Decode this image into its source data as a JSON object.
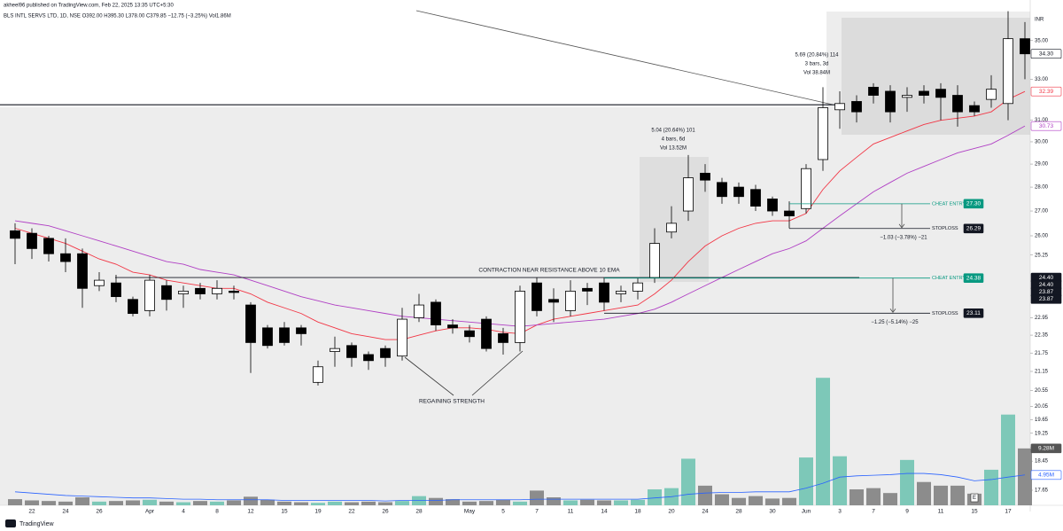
{
  "header": {
    "attribution": "akheel96 published on TradingView.com, Feb 22, 2025 13:35 UTC+5:30",
    "symbol_line": "BLS INTL SERVS LTD, 1D, NSE  O392.00 H395.30 L378.00 C379.85 −12.75 (−3.25%) Vol1.86M"
  },
  "footer": {
    "logo": "TradingView"
  },
  "chart_data": {
    "type": "candlestick",
    "currency": "INR",
    "log_scale": true,
    "grid": false,
    "up_color": "#ffffff",
    "down_color": "#000000",
    "volume_up_color": "#7dc8b8",
    "volume_down_color": "#8c8c8c",
    "ylim": [
      17.25,
      36.73
    ],
    "yticks": [
      {
        "value": 35,
        "label": "35.00"
      },
      {
        "value": 33,
        "label": "33.00"
      },
      {
        "value": 31,
        "label": "31.00"
      },
      {
        "value": 30,
        "label": "30.00"
      },
      {
        "value": 29,
        "label": "29.00"
      },
      {
        "value": 28,
        "label": "28.00"
      },
      {
        "value": 27,
        "label": "27.00"
      },
      {
        "value": 26,
        "label": "26.00"
      },
      {
        "value": 25.25,
        "label": "25.25"
      },
      {
        "value": 22.95,
        "label": "22.95"
      },
      {
        "value": 22.35,
        "label": "22.35"
      },
      {
        "value": 21.75,
        "label": "21.75"
      },
      {
        "value": 21.15,
        "label": "21.15"
      },
      {
        "value": 20.55,
        "label": "20.55"
      },
      {
        "value": 20.05,
        "label": "20.05"
      },
      {
        "value": 19.65,
        "label": "19.65"
      },
      {
        "value": 19.25,
        "label": "19.25"
      },
      {
        "value": 18.85,
        "label": "18.85"
      },
      {
        "value": 18.45,
        "label": "18.45"
      },
      {
        "value": 17.65,
        "label": "17.65"
      }
    ],
    "volume_ylim": [
      0,
      81
    ],
    "categories": [
      null,
      "22",
      null,
      "24",
      null,
      "26",
      null,
      null,
      "Apr",
      null,
      "4",
      null,
      "8",
      null,
      "12",
      null,
      "15",
      null,
      "19",
      null,
      "22",
      null,
      "26",
      null,
      "28",
      null,
      null,
      "May",
      null,
      "5",
      null,
      "7",
      null,
      "11",
      null,
      "14",
      null,
      "18",
      null,
      "20",
      null,
      "24",
      null,
      "28",
      null,
      "30",
      null,
      "Jun",
      null,
      "3",
      null,
      "7",
      null,
      "9",
      null,
      "11",
      null,
      "15",
      null,
      "17",
      null
    ],
    "open": [
      26.2,
      26.1,
      25.9,
      25.3,
      25.3,
      24.1,
      24.2,
      23.6,
      23.2,
      24.1,
      23.8,
      24.0,
      23.8,
      23.9,
      23.4,
      22.6,
      22.6,
      22.6,
      20.8,
      21.8,
      22.0,
      21.7,
      21.9,
      21.65,
      22.95,
      23.5,
      22.7,
      22.5,
      22.9,
      22.4,
      22.1,
      24.2,
      23.6,
      23.2,
      24.0,
      24.2,
      23.8,
      23.9,
      24.4,
      26.15,
      27.0,
      28.6,
      28.2,
      28.0,
      27.9,
      27.5,
      27.0,
      27.1,
      29.2,
      31.5,
      31.9,
      32.6,
      32.4,
      32.1,
      32.4,
      32.5,
      32.2,
      31.7,
      32.0,
      31.8,
      35.1
    ],
    "high": [
      26.5,
      26.3,
      26.0,
      25.9,
      25.5,
      24.6,
      24.5,
      23.7,
      24.5,
      24.3,
      24.1,
      24.2,
      24.3,
      24.1,
      23.5,
      22.7,
      22.8,
      22.7,
      21.5,
      22.3,
      22.1,
      21.8,
      22.0,
      23.3,
      23.8,
      23.6,
      22.9,
      22.7,
      23.0,
      22.6,
      24.1,
      24.4,
      24.0,
      24.3,
      24.2,
      24.4,
      24.1,
      24.4,
      26.3,
      27.2,
      29.4,
      29.0,
      28.4,
      28.2,
      28.1,
      27.6,
      27.4,
      29.0,
      32.6,
      32.4,
      32.2,
      32.8,
      32.7,
      32.6,
      32.7,
      32.8,
      32.7,
      31.9,
      33.2,
      36.6,
      36.0
    ],
    "low": [
      24.9,
      25.1,
      25.0,
      24.6,
      23.3,
      23.9,
      23.5,
      23.0,
      23.0,
      23.2,
      23.3,
      23.6,
      23.6,
      23.6,
      21.1,
      21.9,
      22.0,
      22.0,
      20.7,
      21.3,
      21.3,
      21.2,
      21.3,
      21.5,
      22.8,
      22.5,
      22.4,
      22.1,
      21.8,
      21.7,
      21.8,
      23.0,
      22.8,
      23.0,
      23.4,
      23.2,
      23.5,
      23.6,
      24.2,
      25.9,
      26.6,
      27.8,
      27.3,
      27.3,
      27.0,
      26.8,
      26.3,
      26.9,
      28.7,
      30.6,
      30.9,
      31.8,
      30.9,
      31.4,
      31.8,
      31.0,
      30.7,
      31.2,
      31.6,
      31.0,
      33.0
    ],
    "close": [
      25.9,
      25.5,
      25.3,
      25.0,
      24.0,
      24.3,
      23.7,
      23.1,
      24.3,
      23.6,
      23.9,
      23.8,
      24.0,
      23.85,
      22.1,
      22.0,
      22.1,
      22.4,
      21.3,
      21.9,
      21.6,
      21.5,
      21.6,
      22.9,
      23.4,
      22.7,
      22.6,
      22.3,
      21.9,
      22.1,
      23.9,
      23.2,
      23.5,
      23.9,
      23.9,
      23.5,
      23.9,
      24.2,
      25.7,
      26.5,
      28.4,
      28.3,
      27.6,
      27.6,
      27.2,
      27.0,
      26.8,
      28.8,
      31.6,
      31.8,
      31.4,
      32.2,
      31.4,
      32.2,
      32.2,
      32.1,
      31.4,
      31.4,
      32.5,
      35.1,
      34.3
    ],
    "last_price_label": "34.30",
    "volume": {
      "values": [
        1.0,
        0.8,
        0.7,
        0.6,
        1.3,
        0.6,
        0.7,
        0.8,
        0.9,
        0.6,
        0.5,
        0.7,
        0.6,
        0.8,
        1.4,
        0.9,
        0.6,
        0.5,
        0.4,
        0.6,
        0.5,
        0.6,
        0.5,
        0.7,
        1.5,
        1.2,
        1.0,
        0.6,
        0.7,
        0.9,
        0.6,
        2.4,
        1.3,
        0.8,
        0.9,
        0.8,
        0.8,
        0.9,
        2.6,
        2.8,
        7.6,
        3.2,
        1.8,
        1.2,
        1.5,
        1.1,
        1.2,
        7.8,
        20.8,
        8.0,
        2.6,
        2.8,
        2.0,
        7.4,
        3.8,
        3.2,
        3.2,
        1.9,
        5.8,
        14.8,
        9.28
      ],
      "last_label": "9.28M"
    },
    "volume_ma": {
      "color": "#2962ff",
      "values": [
        2.2,
        2.0,
        1.8,
        1.6,
        1.5,
        1.4,
        1.3,
        1.2,
        1.2,
        1.1,
        1.0,
        1.0,
        0.9,
        0.9,
        0.9,
        0.9,
        0.8,
        0.8,
        0.8,
        0.8,
        0.8,
        0.8,
        0.7,
        0.8,
        0.8,
        0.8,
        0.9,
        0.9,
        0.9,
        0.9,
        0.9,
        1.0,
        1.0,
        1.0,
        1.0,
        1.0,
        1.0,
        1.0,
        1.2,
        1.4,
        1.8,
        2.0,
        2.1,
        2.1,
        2.2,
        2.2,
        2.2,
        2.8,
        3.6,
        4.6,
        4.8,
        4.9,
        5.0,
        5.2,
        5.2,
        5.0,
        4.6,
        4.0,
        4.2,
        4.6,
        4.95
      ],
      "last_label": "4.95M"
    },
    "series": [
      {
        "color": "#f23645",
        "last_label": "32.39",
        "values": [
          26.3,
          26.1,
          25.9,
          25.7,
          25.4,
          25.1,
          24.9,
          24.6,
          24.5,
          24.3,
          24.2,
          24.1,
          24.0,
          24.0,
          23.8,
          23.5,
          23.3,
          23.1,
          22.8,
          22.6,
          22.4,
          22.3,
          22.2,
          22.2,
          22.35,
          22.5,
          22.6,
          22.6,
          22.55,
          22.45,
          22.4,
          22.7,
          22.9,
          23.0,
          23.1,
          23.2,
          23.3,
          23.4,
          23.8,
          24.3,
          25.0,
          25.6,
          26.0,
          26.3,
          26.5,
          26.6,
          26.6,
          26.9,
          27.9,
          28.7,
          29.3,
          29.9,
          30.2,
          30.5,
          30.8,
          31.0,
          31.1,
          31.2,
          31.4,
          32.0,
          32.39
        ]
      },
      {
        "color": "#b03fc4",
        "last_label": "30.73",
        "values": [
          26.6,
          26.5,
          26.4,
          26.2,
          26.0,
          25.8,
          25.6,
          25.4,
          25.2,
          25.0,
          24.9,
          24.7,
          24.6,
          24.5,
          24.3,
          24.1,
          23.9,
          23.7,
          23.55,
          23.4,
          23.3,
          23.2,
          23.1,
          23.0,
          22.95,
          22.9,
          22.85,
          22.8,
          22.75,
          22.7,
          22.65,
          22.7,
          22.75,
          22.8,
          22.85,
          22.9,
          23.0,
          23.1,
          23.25,
          23.5,
          23.8,
          24.1,
          24.4,
          24.7,
          25.0,
          25.3,
          25.5,
          25.8,
          26.3,
          26.8,
          27.3,
          27.8,
          28.2,
          28.6,
          28.9,
          29.2,
          29.5,
          29.7,
          29.9,
          30.3,
          30.73
        ]
      }
    ],
    "horizontal_lines": [
      31.74,
      24.4
    ],
    "price_marks": [
      {
        "value": 24.4,
        "label": "24.40"
      },
      {
        "value": 24.4,
        "label": "24.40"
      },
      {
        "value": 23.87,
        "label": "23.87"
      },
      {
        "value": 23.87,
        "label": "23.87"
      }
    ],
    "levels": [
      {
        "label": "CHEAT ENTRY",
        "value": 27.3,
        "value_label": "27.30",
        "color": "#089981"
      },
      {
        "label": "STOPLOSS",
        "value": 26.29,
        "value_label": "26.29",
        "color": "#131722"
      },
      {
        "label": "CHEAT ENTRY",
        "value": 24.38,
        "value_label": "24.38",
        "color": "#089981"
      },
      {
        "label": "STOPLOSS",
        "value": 23.11,
        "value_label": "23.11",
        "color": "#131722"
      }
    ],
    "risk_labels": [
      "−1.03 (−3.78%) −21",
      "−1.25 (−5.14%) −25"
    ],
    "measurements": [
      [
        "5.04 (20.64%) 101",
        "4 bars, 6d",
        "Vol 13.52M"
      ],
      [
        "5.69 (20.84%) 114",
        "3 bars, 3d",
        "Vol 38.84M"
      ]
    ],
    "annotations": [
      "CONTRACTION NEAR RESISTANCE ABOVE 10 EMA",
      "REGAINING STRENGTH"
    ],
    "earnings_marker": "E"
  }
}
